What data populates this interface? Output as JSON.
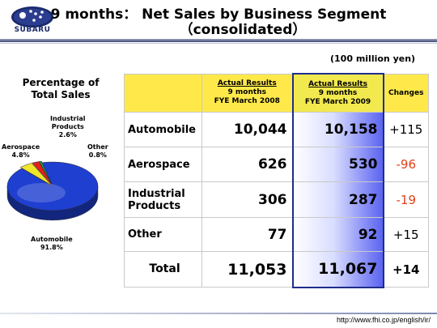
{
  "header": {
    "logo_text": "SUBARU",
    "title_line1": "9 months： Net Sales by Business Segment",
    "title_line2": "（consolidated）"
  },
  "unit_note": "(100 million yen)",
  "pie": {
    "title_line1": "Percentage of",
    "title_line2": "Total Sales",
    "slices": [
      {
        "name": "Automobile",
        "label": "Automobile",
        "pct_label": "91.8%",
        "value": 91.8,
        "color": "#1f3fd0"
      },
      {
        "name": "Aerospace",
        "label": "Aerospace",
        "pct_label": "4.8%",
        "value": 4.8,
        "color": "#f0e62a"
      },
      {
        "name": "Industrial Products",
        "label_line1": "Industrial",
        "label_line2": "Products",
        "pct_label": "2.6%",
        "value": 2.6,
        "color": "#e0201a"
      },
      {
        "name": "Other",
        "label": "Other",
        "pct_label": "0.8%",
        "value": 0.8,
        "color": "#1aa050"
      }
    ]
  },
  "table": {
    "col_prev": {
      "line1": "Actual Results",
      "line2": "9 months",
      "line3": "FYE March 2008"
    },
    "col_cur": {
      "line1": "Actual Results",
      "line2": "9 months",
      "line3": "FYE March 2009"
    },
    "col_changes": "Changes",
    "rows": [
      {
        "segment": "Automobile",
        "prev": "10,044",
        "cur": "10,158",
        "change": "+115"
      },
      {
        "segment": "Aerospace",
        "prev": "626",
        "cur": "530",
        "change": "-96"
      },
      {
        "segment_line1": "Industrial",
        "segment_line2": "Products",
        "prev": "306",
        "cur": "287",
        "change": "-19"
      },
      {
        "segment": "Other",
        "prev": "77",
        "cur": "92",
        "change": "+15"
      }
    ],
    "total": {
      "segment": "Total",
      "prev": "11,053",
      "cur": "11,067",
      "change": "+14"
    }
  },
  "footer": {
    "url": "http://www.fhi.co.jp/english/ir/"
  }
}
